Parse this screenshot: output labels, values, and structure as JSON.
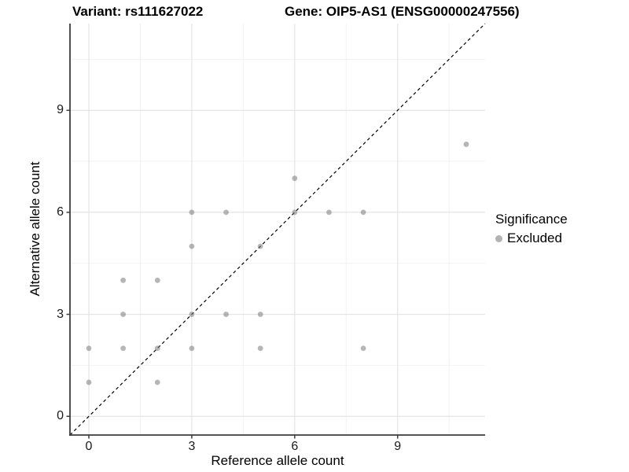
{
  "header": {
    "variant_title": "Variant: rs111627022",
    "gene_title": "Gene: OIP5-AS1 (ENSG00000247556)"
  },
  "axes": {
    "x_label": "Reference allele count",
    "y_label": "Alternative allele count"
  },
  "legend": {
    "title": "Significance",
    "items": [
      {
        "label": "Excluded",
        "color": "#b3b3b3"
      }
    ]
  },
  "chart_data": {
    "type": "scatter",
    "title": "Variant: rs111627022   Gene: OIP5-AS1 (ENSG00000247556)",
    "xlabel": "Reference allele count",
    "ylabel": "Alternative allele count",
    "xlim": [
      -0.55,
      11.55
    ],
    "ylim": [
      -0.55,
      11.55
    ],
    "x_ticks": [
      0,
      3,
      6,
      9
    ],
    "y_ticks": [
      0,
      3,
      6,
      9
    ],
    "x_minor_ticks": [
      1.5,
      4.5,
      7.5,
      10.5
    ],
    "y_minor_ticks": [
      1.5,
      4.5,
      7.5,
      10.5
    ],
    "points": [
      [
        0,
        1
      ],
      [
        0,
        2
      ],
      [
        1,
        2
      ],
      [
        1,
        3
      ],
      [
        1,
        4
      ],
      [
        2,
        1
      ],
      [
        2,
        2
      ],
      [
        2,
        4
      ],
      [
        3,
        2
      ],
      [
        3,
        3
      ],
      [
        3,
        5
      ],
      [
        3,
        6
      ],
      [
        4,
        3
      ],
      [
        4,
        6
      ],
      [
        5,
        2
      ],
      [
        5,
        3
      ],
      [
        5,
        5
      ],
      [
        6,
        6
      ],
      [
        6,
        7
      ],
      [
        7,
        6
      ],
      [
        8,
        2
      ],
      [
        8,
        6
      ],
      [
        11,
        8
      ]
    ],
    "series_name": "Excluded",
    "point_color": "#7a7a7a",
    "point_opacity": 0.55,
    "point_radius": 3.4,
    "identity_line": {
      "from": [
        -0.55,
        -0.55
      ],
      "to": [
        11.55,
        11.55
      ],
      "style": "dashed",
      "color": "#000000"
    },
    "grid": {
      "major_color": "#e4e4e4",
      "minor_color": "#f2f2f2",
      "background": "#ffffff"
    },
    "axis_line_color": "#3c3c3c",
    "legend_position": "right",
    "legend": {
      "title": "Significance",
      "items": [
        "Excluded"
      ]
    }
  }
}
